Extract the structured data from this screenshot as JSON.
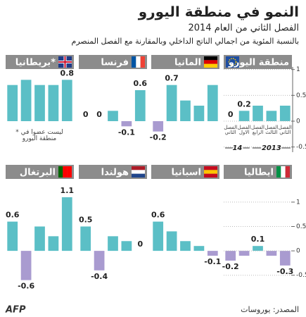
{
  "title": "النمو في منطقة اليورو",
  "subtitle": "الفصل الثاني من العام 2014",
  "description": "بالنسبة المئوية من اجمالي الناتج الداخلي وبالمقارنة مع الفصل المنصرم",
  "source": "المصدر: يوروسات",
  "agency": "AFP",
  "chart_data": [
    {
      "type": "bar",
      "title": "منطقة اليورو",
      "values": [
        0,
        0.2,
        0.3,
        0.2,
        0.3
      ],
      "value_labels": [
        "0",
        "0.2",
        null,
        null,
        null
      ],
      "categories": [
        "الفصل الثاني",
        "الفصل الاول",
        "الفصل الرابع",
        "الفصل الثالث",
        "الفصل الثاني"
      ],
      "year_labels": [
        "14",
        "2013"
      ],
      "ylim": [
        -0.6,
        1.05
      ],
      "yticks": [
        1,
        0.5,
        0,
        -0.5
      ],
      "color": "#5bbfc6",
      "negative_color": "#a99bd0"
    },
    {
      "type": "bar",
      "title": "المانيا",
      "values": [
        -0.2,
        0.7,
        0.4,
        0.3,
        0.7
      ],
      "value_labels": [
        "-0.2",
        "0.7",
        null,
        null,
        null
      ],
      "ylim": [
        -0.6,
        1.05
      ],
      "color": "#5bbfc6",
      "negative_color": "#a99bd0"
    },
    {
      "type": "bar",
      "title": "فرنسا",
      "values": [
        0,
        0,
        0.2,
        -0.1,
        0.6
      ],
      "value_labels": [
        "0",
        "0",
        null,
        "-0.1",
        "0.6"
      ],
      "ylim": [
        -0.6,
        1.05
      ],
      "color": "#5bbfc6",
      "negative_color": "#a99bd0"
    },
    {
      "type": "bar",
      "title": "بريطانيا*",
      "values": [
        0.7,
        0.8,
        0.7,
        0.7,
        0.8
      ],
      "value_labels": [
        null,
        null,
        null,
        null,
        "0.8"
      ],
      "note": "* ليست عضوا في منطقة اليورو",
      "ylim": [
        -0.6,
        1.05
      ],
      "color": "#5bbfc6",
      "negative_color": "#a99bd0"
    },
    {
      "type": "bar",
      "title": "ايطاليا",
      "values": [
        -0.2,
        -0.1,
        0.1,
        -0.1,
        -0.3
      ],
      "value_labels": [
        "-0.2",
        null,
        "0.1",
        null,
        "-0.3"
      ],
      "ylim": [
        -0.75,
        1.1
      ],
      "yticks": [
        1,
        0.5,
        0,
        -0.5
      ],
      "color": "#5bbfc6",
      "negative_color": "#a99bd0"
    },
    {
      "type": "bar",
      "title": "اسبانيا",
      "values": [
        0.6,
        0.4,
        0.2,
        0.1,
        -0.1
      ],
      "value_labels": [
        "0.6",
        null,
        null,
        null,
        "-0.1"
      ],
      "ylim": [
        -0.75,
        1.1
      ],
      "color": "#5bbfc6",
      "negative_color": "#a99bd0"
    },
    {
      "type": "bar",
      "title": "هولندا",
      "values": [
        0.5,
        -0.4,
        0.3,
        0.2,
        0
      ],
      "value_labels": [
        "0.5",
        "-0.4",
        null,
        null,
        "0"
      ],
      "ylim": [
        -0.75,
        1.1
      ],
      "color": "#5bbfc6",
      "negative_color": "#a99bd0"
    },
    {
      "type": "bar",
      "title": "البرتغال",
      "values": [
        0.6,
        -0.6,
        0.5,
        0.3,
        1.1
      ],
      "value_labels": [
        "0.6",
        "-0.6",
        null,
        null,
        "1.1"
      ],
      "ylim": [
        -0.75,
        1.1
      ],
      "color": "#5bbfc6",
      "negative_color": "#a99bd0"
    }
  ]
}
